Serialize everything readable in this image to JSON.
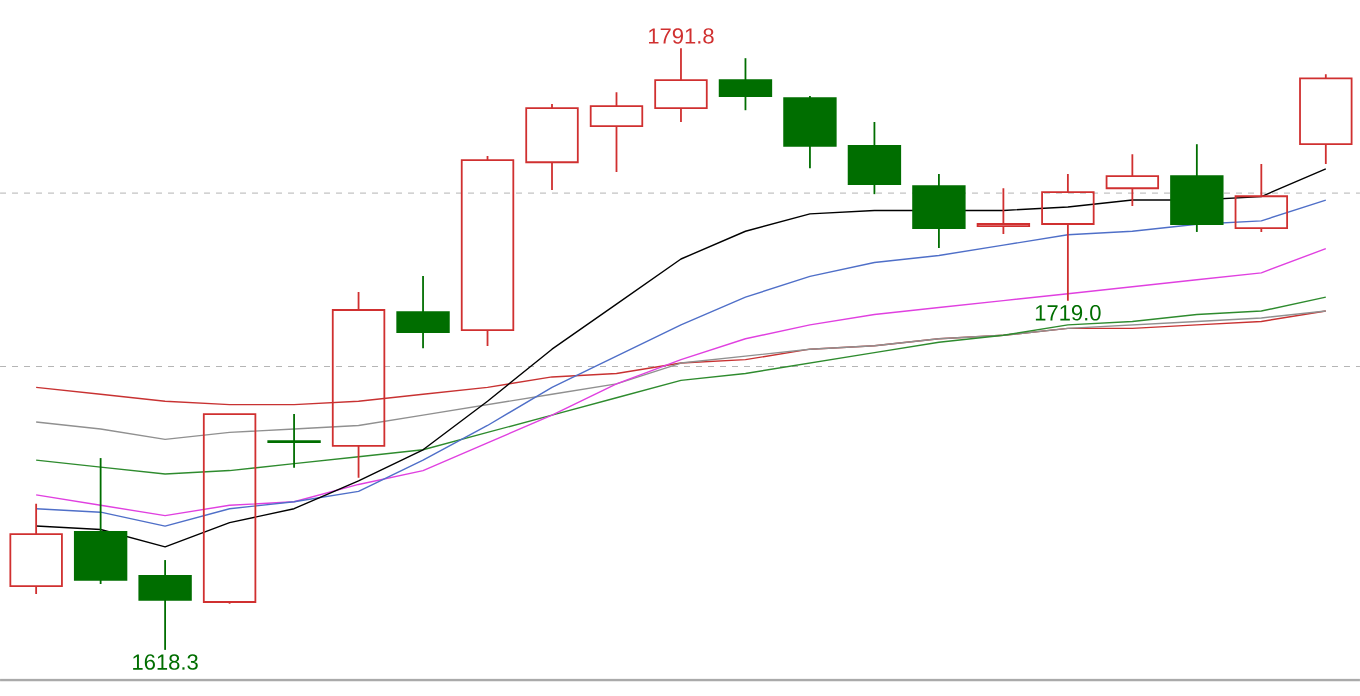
{
  "chart_data": {
    "type": "candlestick",
    "categories": [
      null,
      null,
      null,
      null,
      null,
      null,
      null,
      null,
      null,
      null,
      null,
      null,
      null,
      null,
      null,
      null,
      null,
      null,
      null,
      null,
      null
    ],
    "ohlc": [
      [
        1636.7,
        1660.4,
        1634.4,
        1651.7
      ],
      [
        1652.3,
        1673.6,
        1637.3,
        1638.5
      ],
      [
        1639.6,
        1644.2,
        1618.3,
        1632.7
      ],
      [
        1632.1,
        1686.3,
        1631.6,
        1686.3
      ],
      [
        1678.5,
        1686.3,
        1670.8,
        1678.2
      ],
      [
        1677.1,
        1721.5,
        1667.9,
        1716.3
      ],
      [
        1715.7,
        1726.1,
        1705.3,
        1709.9
      ],
      [
        1710.5,
        1760.7,
        1705.9,
        1759.5
      ],
      [
        1758.9,
        1775.7,
        1750.9,
        1774.5
      ],
      [
        1769.3,
        1779.1,
        1756.1,
        1775.1
      ],
      [
        1774.5,
        1791.8,
        1770.5,
        1782.6
      ],
      [
        1782.6,
        1788.9,
        1773.9,
        1778.0
      ],
      [
        1777.4,
        1778.0,
        1757.2,
        1763.6
      ],
      [
        1763.6,
        1770.5,
        1749.7,
        1752.6
      ],
      [
        1752.0,
        1755.5,
        1734.2,
        1739.9
      ],
      [
        1740.5,
        1751.4,
        1738.2,
        1741.1
      ],
      [
        1741.1,
        1755.5,
        1719.0,
        1750.3
      ],
      [
        1751.4,
        1761.2,
        1746.3,
        1754.9
      ],
      [
        1754.9,
        1764.1,
        1738.8,
        1741.1
      ],
      [
        1739.9,
        1758.4,
        1738.8,
        1749.1
      ],
      [
        1764.1,
        1784.3,
        1758.4,
        1783.1
      ]
    ],
    "colors": [
      "#d03030",
      "#006e00",
      "#006e00",
      "#d03030",
      "#006e00",
      "#d03030",
      "#006e00",
      "#d03030",
      "#d03030",
      "#d03030",
      "#d03030",
      "#006e00",
      "#006e00",
      "#006e00",
      "#006e00",
      "#d03030",
      "#d03030",
      "#d03030",
      "#006e00",
      "#d03030",
      "#d03030"
    ],
    "series": [
      {
        "type": "line",
        "color": "#c83232",
        "values": [
          1694,
          1692,
          1690,
          1689,
          1689,
          1690,
          1692,
          1694,
          1697,
          1698,
          1701,
          1702,
          1705,
          1706,
          1708,
          1709,
          1711,
          1711,
          1712,
          1713,
          1716
        ]
      },
      {
        "type": "line",
        "color": "#909090",
        "values": [
          1684,
          1682,
          1679,
          1681,
          1682,
          1683,
          1686,
          1689,
          1692,
          1695,
          1701,
          1703,
          1705,
          1706,
          1708,
          1709,
          1711,
          1712,
          1713,
          1714,
          1716
        ]
      },
      {
        "type": "line",
        "color": "#2e8b2e",
        "values": [
          1673,
          1671,
          1669,
          1670,
          1672,
          1674,
          1676,
          1681,
          1686,
          1691,
          1696,
          1698,
          1701,
          1704,
          1707,
          1709,
          1712,
          1713,
          1715,
          1716,
          1720
        ]
      },
      {
        "type": "line",
        "color": "#e040e0",
        "values": [
          1663,
          1660,
          1657,
          1660,
          1661,
          1666,
          1670,
          1678,
          1686,
          1695,
          1702,
          1708,
          1712,
          1715,
          1717,
          1719,
          1721,
          1723,
          1725,
          1727,
          1734
        ]
      },
      {
        "type": "line",
        "color": "#4f6fc8",
        "values": [
          1659,
          1658,
          1654,
          1659,
          1661,
          1664,
          1673,
          1683,
          1694,
          1703,
          1712,
          1720,
          1726,
          1730,
          1732,
          1735,
          1738,
          1739,
          1741,
          1742,
          1748
        ]
      },
      {
        "type": "line",
        "color": "#000000",
        "values": [
          1654,
          1653,
          1648,
          1655,
          1659,
          1667,
          1676,
          1690,
          1705,
          1718,
          1731,
          1739,
          1744,
          1745,
          1745,
          1745,
          1746,
          1748,
          1748,
          1749,
          1757
        ]
      }
    ],
    "ref_lines": [
      {
        "axis": "y",
        "value": 1700,
        "color": "#b4b4b4",
        "line_style": "dashed"
      },
      {
        "axis": "y",
        "value": 1750,
        "color": "#b4b4b4",
        "line_style": "dashed"
      }
    ],
    "annotations": [
      {
        "text": "1791.8",
        "y": 1791.8
      },
      {
        "text": "1618.3",
        "y": 1618.3
      },
      {
        "text": "1719.0",
        "y": 1719.0
      }
    ]
  }
}
